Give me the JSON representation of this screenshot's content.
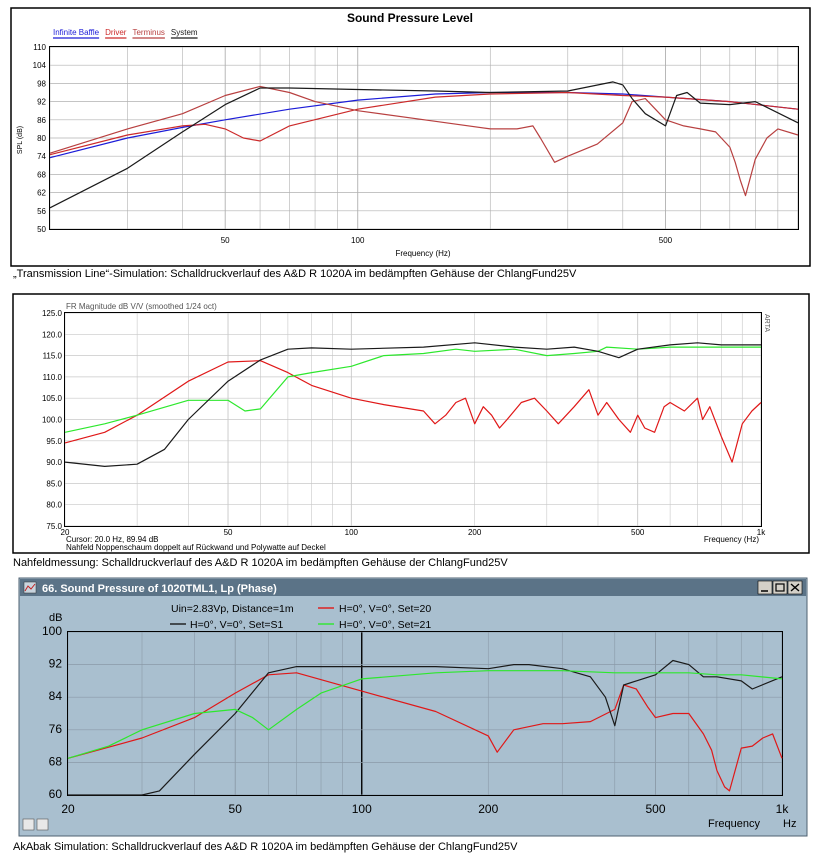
{
  "captions": {
    "c1": "„Transmission Line“-Simulation: Schalldruckverlauf des A&D R 1020A im bedämpften Gehäuse der ChlangFund25V",
    "c2": "Nahfeldmessung: Schalldruckverlauf des A&D R 1020A im bedämpften Gehäuse der ChlangFund25V",
    "c3": "AkAbak Simulation: Schalldruckverlauf des A&D R 1020A im bedämpften Gehäuse der ChlangFund25V"
  },
  "chart_data": [
    {
      "type": "line",
      "title": "Sound Pressure Level",
      "xlabel": "Frequency (Hz)",
      "ylabel": "SPL (dB)",
      "xscale": "log",
      "xlim": [
        20,
        1000
      ],
      "ylim": [
        50,
        110
      ],
      "yticks": [
        110,
        104,
        98,
        92,
        86,
        80,
        74,
        68,
        62,
        56,
        50
      ],
      "xtick_labels": [
        {
          "v": 50,
          "t": "50"
        },
        {
          "v": 100,
          "t": "100"
        },
        {
          "v": 500,
          "t": "500"
        }
      ],
      "grid": true,
      "legend": "top-left",
      "series": [
        {
          "name": "Infinite Baffle",
          "color": "#1c1cd8",
          "x": [
            20,
            30,
            40,
            50,
            70,
            100,
            150,
            200,
            300,
            400,
            500,
            700,
            1000
          ],
          "y": [
            73.5,
            80,
            83.5,
            86,
            89.5,
            92.5,
            94.5,
            95,
            95,
            94.5,
            93.5,
            92,
            89.5
          ]
        },
        {
          "name": "Driver",
          "color": "#cc2a2a",
          "x": [
            20,
            30,
            40,
            45,
            50,
            55,
            60,
            70,
            100,
            150,
            200,
            300,
            400,
            500,
            700,
            1000
          ],
          "y": [
            74.5,
            81,
            84,
            84.5,
            83,
            80,
            79,
            84,
            89.5,
            93.5,
            94.5,
            95,
            94,
            93.5,
            92,
            89.5
          ]
        },
        {
          "name": "Terminus",
          "color": "#b84040",
          "x": [
            20,
            30,
            40,
            50,
            60,
            70,
            80,
            100,
            150,
            200,
            230,
            250,
            260,
            280,
            300,
            350,
            400,
            420,
            450,
            500,
            550,
            600,
            650,
            700,
            720,
            740,
            760,
            800,
            850,
            900,
            1000
          ],
          "y": [
            75,
            83,
            88,
            94,
            97,
            95,
            92,
            89,
            85.5,
            83,
            83,
            84,
            80,
            72,
            74,
            78,
            85,
            92,
            93,
            86,
            84,
            83,
            82,
            77,
            72,
            66,
            61,
            73,
            80,
            83,
            81
          ]
        },
        {
          "name": "System",
          "color": "#1a1a1a",
          "x": [
            20,
            30,
            40,
            50,
            60,
            70,
            100,
            150,
            200,
            300,
            380,
            400,
            420,
            450,
            500,
            530,
            560,
            600,
            700,
            800,
            1000
          ],
          "y": [
            57,
            70,
            82,
            91,
            96.5,
            96.5,
            96,
            95.5,
            95,
            95.5,
            98.5,
            97.5,
            93,
            88,
            84,
            94,
            95,
            91.5,
            91,
            92,
            85
          ]
        }
      ]
    },
    {
      "type": "line",
      "title": "FR Magnitude dB V/V (smoothed 1/24 oct)",
      "xlabel": "Frequency (Hz)",
      "xscale": "log",
      "xlim": [
        20,
        1000
      ],
      "ylim": [
        75,
        125
      ],
      "yticks": [
        125,
        120,
        115,
        110,
        105,
        100,
        95,
        90,
        85,
        80,
        75
      ],
      "ytick_labels": [
        "125.0",
        "120.0",
        "115.0",
        "110.0",
        "105.0",
        "100.0",
        "95.0",
        "90.0",
        "85.0",
        "80.0",
        "75.0"
      ],
      "xtick_labels": [
        {
          "v": 20,
          "t": "20"
        },
        {
          "v": 50,
          "t": "50"
        },
        {
          "v": 100,
          "t": "100"
        },
        {
          "v": 200,
          "t": "200"
        },
        {
          "v": 500,
          "t": "500"
        },
        {
          "v": 1000,
          "t": "1k"
        }
      ],
      "grid": true,
      "brand": "ARTA",
      "cursor_text": "Cursor: 20.0 Hz, 89.94 dB",
      "note": "Nahfeld Noppenschaum doppelt auf Rückwand und Polywatte auf Deckel",
      "series": [
        {
          "color": "#e01818",
          "x": [
            20,
            25,
            30,
            40,
            50,
            60,
            70,
            80,
            100,
            120,
            150,
            160,
            170,
            180,
            190,
            200,
            210,
            220,
            230,
            240,
            260,
            280,
            300,
            320,
            350,
            380,
            400,
            420,
            450,
            480,
            500,
            520,
            550,
            580,
            600,
            650,
            700,
            720,
            750,
            800,
            850,
            900,
            950,
            1000
          ],
          "y": [
            94.5,
            97,
            101,
            109,
            113.5,
            113.8,
            111,
            108,
            105,
            103.5,
            102,
            99,
            101,
            104,
            105,
            99,
            103,
            101,
            98,
            100,
            104,
            105,
            102,
            99,
            103,
            107,
            101,
            104,
            100,
            97,
            101,
            98,
            97,
            103,
            104,
            102,
            105,
            100,
            103,
            96,
            90,
            99,
            102,
            104
          ]
        },
        {
          "color": "#2de82d",
          "x": [
            20,
            25,
            30,
            40,
            50,
            55,
            60,
            70,
            80,
            100,
            120,
            150,
            180,
            200,
            250,
            300,
            350,
            400,
            420,
            500,
            600,
            700,
            800,
            1000
          ],
          "y": [
            97,
            99,
            101,
            104.5,
            104.5,
            102,
            102.5,
            110,
            111,
            112.5,
            115,
            115.5,
            116.5,
            116,
            116.5,
            115,
            115.5,
            116,
            117,
            116.5,
            117,
            117,
            117,
            117
          ]
        },
        {
          "color": "#1a1a1a",
          "x": [
            20,
            25,
            30,
            35,
            40,
            50,
            60,
            70,
            80,
            100,
            150,
            200,
            250,
            300,
            350,
            400,
            450,
            500,
            600,
            700,
            800,
            1000
          ],
          "y": [
            90,
            89,
            89.5,
            93,
            100,
            109,
            114,
            116.5,
            116.8,
            116.5,
            117,
            118,
            117,
            116.5,
            117,
            116,
            114.5,
            116.5,
            117.5,
            118,
            117.5,
            117.5
          ]
        }
      ]
    },
    {
      "type": "line",
      "title": "66. Sound Pressure of 1020TML1, Lp (Phase)",
      "xlabel": "Frequency",
      "xunit": "Hz",
      "ylabel": "dB",
      "xscale": "log",
      "xlim": [
        20,
        1000
      ],
      "ylim": [
        60,
        100
      ],
      "yticks": [
        100,
        92,
        84,
        76,
        68,
        60
      ],
      "xtick_labels": [
        {
          "v": 20,
          "t": "20"
        },
        {
          "v": 50,
          "t": "50"
        },
        {
          "v": 100,
          "t": "100"
        },
        {
          "v": 200,
          "t": "200"
        },
        {
          "v": 500,
          "t": "500"
        },
        {
          "v": 1000,
          "t": "1k"
        }
      ],
      "grid": true,
      "legend": "top-left",
      "legend_entries": [
        {
          "text": "Uin=2.83Vp, Distance=1m",
          "color": ""
        },
        {
          "text": "H=0°, V=0°, Set=20",
          "color": "#e01818"
        },
        {
          "text": "H=0°, V=0°, Set=S1",
          "color": "#1a1a1a"
        },
        {
          "text": "H=0°, V=0°, Set=21",
          "color": "#2de82d"
        }
      ],
      "series": [
        {
          "name": "H=0°, V=0°, Set=20",
          "color": "#e01818",
          "x": [
            20,
            30,
            40,
            50,
            60,
            70,
            100,
            150,
            200,
            210,
            230,
            270,
            300,
            350,
            400,
            420,
            450,
            480,
            500,
            550,
            600,
            650,
            680,
            700,
            730,
            750,
            800,
            850,
            900,
            950,
            1000
          ],
          "y": [
            69,
            74,
            79,
            85,
            89.5,
            90,
            85.5,
            80.5,
            74.5,
            70.5,
            76,
            77.5,
            77.5,
            78,
            81,
            87,
            86,
            81.5,
            79,
            80,
            80,
            75,
            71,
            66,
            62,
            61,
            71.5,
            72,
            74,
            75,
            69
          ]
        },
        {
          "name": "H=0°, V=0°, Set=S1",
          "color": "#1a1a1a",
          "x": [
            20,
            30,
            33,
            40,
            50,
            60,
            70,
            100,
            150,
            200,
            230,
            250,
            300,
            350,
            380,
            400,
            420,
            450,
            500,
            550,
            600,
            650,
            700,
            800,
            850,
            1000
          ],
          "y": [
            60,
            60,
            61,
            70,
            80,
            90,
            91.5,
            91.5,
            91.5,
            91,
            92,
            92,
            91,
            89,
            84,
            77,
            87,
            88,
            89.5,
            93,
            92,
            89,
            89,
            88,
            86,
            89
          ]
        },
        {
          "name": "H=0°, V=0°, Set=21",
          "color": "#2de82d",
          "x": [
            20,
            25,
            30,
            40,
            50,
            55,
            60,
            70,
            80,
            100,
            150,
            200,
            300,
            400,
            500,
            600,
            700,
            800,
            1000
          ],
          "y": [
            69,
            72,
            76,
            80,
            81,
            79,
            76,
            81,
            85,
            88.5,
            90,
            90.5,
            90.5,
            90,
            90,
            90,
            89.5,
            89.5,
            88.5
          ]
        }
      ]
    }
  ]
}
